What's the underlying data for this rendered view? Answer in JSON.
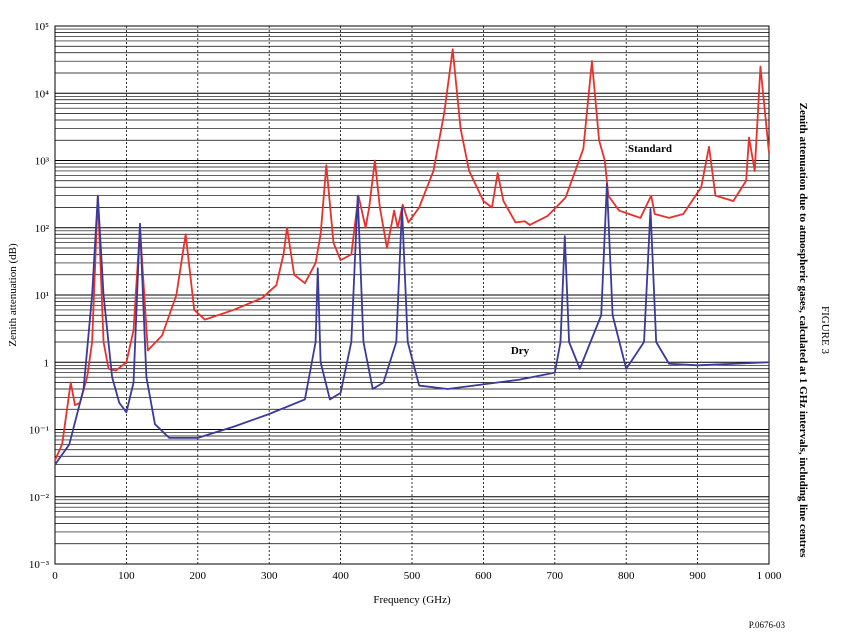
{
  "chart_data": {
    "type": "line",
    "title": "Zenith attenuation due to atmospheric gases, calculated at 1 GHz intervals, including line centres",
    "figure_label": "FIGURE 3",
    "xlabel": "Frequency (GHz)",
    "ylabel": "Zenith attenuation (dB)",
    "source": "P.0676-03",
    "log_y": true,
    "grid": true,
    "minor_grid": true,
    "xlim": [
      0,
      1000
    ],
    "xticks": [
      0,
      100,
      200,
      300,
      400,
      500,
      600,
      700,
      800,
      900,
      {
        "value": 1000,
        "label": "1 000"
      }
    ],
    "ylim": [
      0.001,
      100000
    ],
    "yticks": [
      {
        "value": 0.001,
        "label": "10⁻³"
      },
      {
        "value": 0.01,
        "label": "10⁻²"
      },
      {
        "value": 0.1,
        "label": "10⁻¹"
      },
      1,
      {
        "value": 10,
        "label": "10¹"
      },
      {
        "value": 100,
        "label": "10²"
      },
      {
        "value": 1000,
        "label": "10³"
      },
      {
        "value": 10000,
        "label": "10⁴"
      },
      {
        "value": 100000,
        "label": "10⁵"
      }
    ],
    "series": [
      {
        "name": "Standard",
        "color": "#e8312a",
        "x": [
          0,
          10,
          22,
          28,
          35,
          45,
          52,
          60,
          68,
          75,
          85,
          100,
          110,
          119,
          130,
          150,
          170,
          183,
          195,
          210,
          250,
          290,
          310,
          320,
          325,
          335,
          350,
          365,
          372,
          380,
          390,
          400,
          415,
          425,
          435,
          440,
          448,
          455,
          465,
          475,
          480,
          487,
          495,
          510,
          530,
          545,
          557,
          568,
          580,
          600,
          612,
          620,
          628,
          645,
          658,
          665,
          690,
          715,
          740,
          752,
          762,
          770,
          775,
          790,
          820,
          835,
          840,
          860,
          880,
          905,
          916,
          925,
          950,
          968,
          972,
          980,
          988,
          1000
        ],
        "values": [
          0.035,
          0.06,
          0.5,
          0.23,
          0.25,
          0.6,
          2,
          300,
          2,
          0.8,
          0.75,
          1,
          3,
          100,
          1.5,
          2.5,
          10,
          80,
          6,
          4.3,
          6,
          9,
          14,
          40,
          100,
          20,
          15,
          30,
          80,
          850,
          60,
          33,
          40,
          300,
          100,
          200,
          1000,
          200,
          50,
          180,
          100,
          220,
          120,
          200,
          700,
          5000,
          45000,
          3000,
          700,
          250,
          200,
          650,
          250,
          120,
          125,
          110,
          150,
          280,
          1500,
          30000,
          2000,
          1000,
          300,
          180,
          140,
          300,
          160,
          140,
          160,
          400,
          1600,
          300,
          250,
          500,
          2200,
          700,
          25000,
          1300
        ]
      },
      {
        "name": "Dry",
        "color": "#3a3a9a",
        "x": [
          0,
          20,
          40,
          52,
          60,
          68,
          80,
          90,
          100,
          110,
          119,
          128,
          140,
          160,
          200,
          250,
          300,
          350,
          365,
          368,
          372,
          385,
          400,
          415,
          424,
          432,
          445,
          460,
          478,
          486,
          494,
          510,
          550,
          650,
          700,
          708,
          714,
          720,
          735,
          765,
          773,
          781,
          800,
          825,
          834,
          842,
          860,
          900,
          1000
        ],
        "values": [
          0.03,
          0.06,
          0.4,
          10,
          300,
          10,
          0.6,
          0.25,
          0.18,
          0.5,
          115,
          0.6,
          0.12,
          0.075,
          0.075,
          0.11,
          0.17,
          0.28,
          2,
          25,
          1,
          0.28,
          0.35,
          2,
          300,
          2,
          0.4,
          0.5,
          2,
          200,
          2,
          0.45,
          0.4,
          0.55,
          0.7,
          2,
          75,
          2,
          0.8,
          5,
          450,
          5,
          0.8,
          2,
          190,
          2,
          0.95,
          0.9,
          1.0
        ]
      }
    ]
  }
}
